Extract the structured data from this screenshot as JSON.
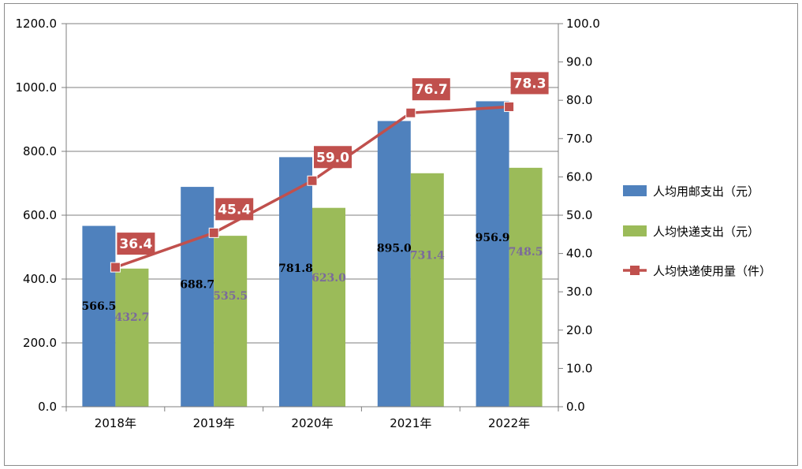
{
  "chart_data": {
    "type": "bar+line",
    "categories": [
      "2018年",
      "2019年",
      "2020年",
      "2021年",
      "2022年"
    ],
    "series": [
      {
        "name": "人均用邮支出（元）",
        "type": "bar",
        "axis": "left",
        "color": "#4f81bd",
        "values": [
          566.5,
          688.7,
          781.8,
          895.0,
          956.9
        ],
        "labels": [
          "566.5",
          "688.7",
          "781.8",
          "895.0",
          "956.9"
        ]
      },
      {
        "name": "人均快递支出（元）",
        "type": "bar",
        "axis": "left",
        "color": "#9bbb59",
        "values": [
          432.7,
          535.5,
          623.0,
          731.4,
          748.5
        ],
        "labels": [
          "432.7",
          "535.5",
          "623.0",
          "731.4",
          "748.5"
        ]
      },
      {
        "name": "人均快递使用量（件）",
        "type": "line",
        "axis": "right",
        "color": "#c0504d",
        "values": [
          36.4,
          45.4,
          59.0,
          76.7,
          78.3
        ],
        "labels": [
          "36.4",
          "45.4",
          "59.0",
          "76.7",
          "78.3"
        ]
      }
    ],
    "left_axis": {
      "ylim": [
        0,
        1200
      ],
      "ticks": [
        "0.0",
        "200.0",
        "400.0",
        "600.0",
        "800.0",
        "1000.0",
        "1200.0"
      ]
    },
    "right_axis": {
      "ylim": [
        0,
        100
      ],
      "ticks": [
        "0.0",
        "10.0",
        "20.0",
        "30.0",
        "40.0",
        "50.0",
        "60.0",
        "70.0",
        "80.0",
        "90.0",
        "100.0"
      ]
    },
    "grid": true,
    "legend_position": "right"
  }
}
